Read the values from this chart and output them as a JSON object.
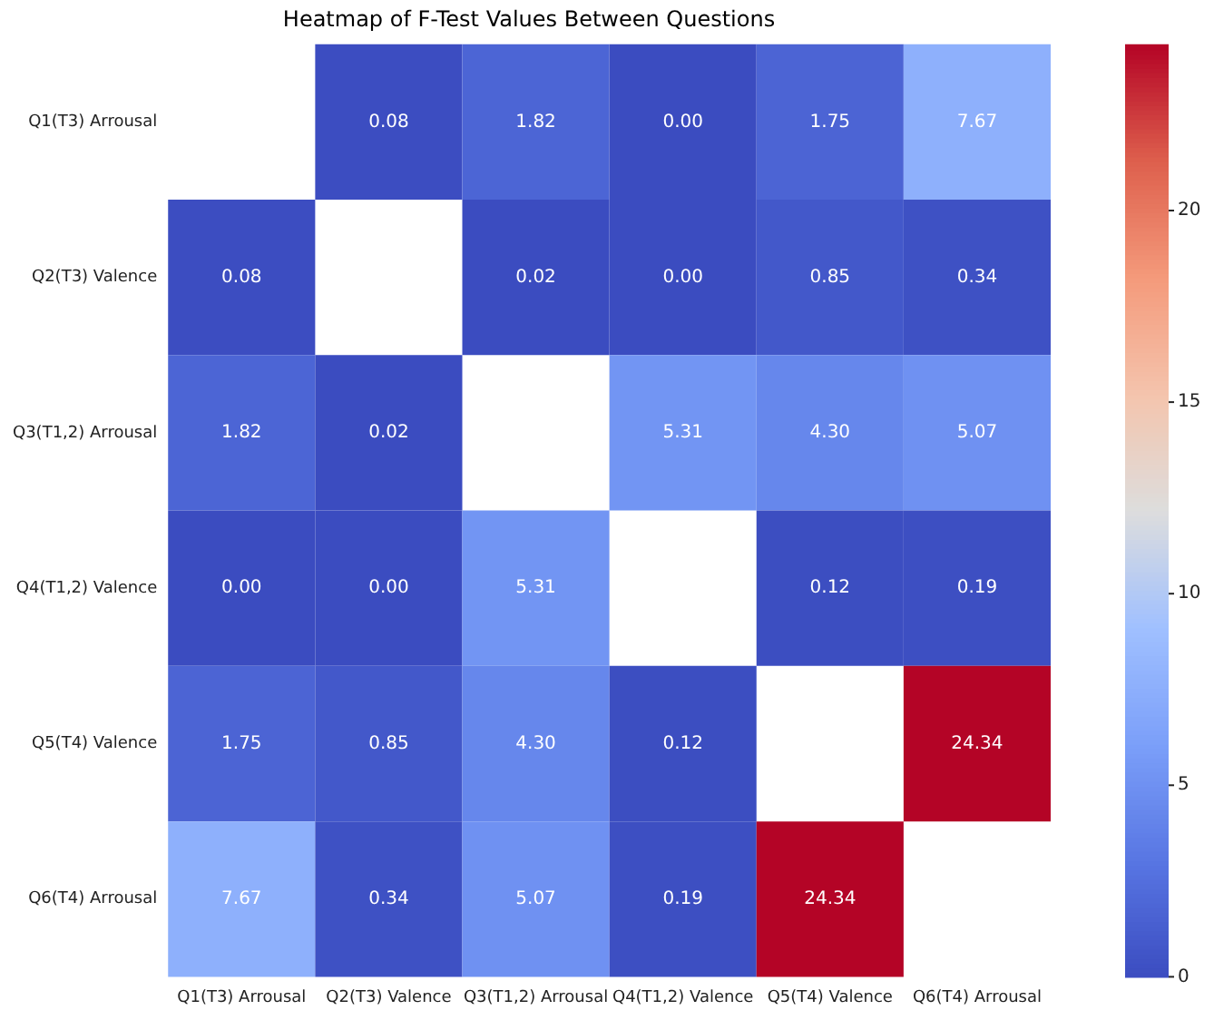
{
  "chart_data": {
    "type": "heatmap",
    "title": "Heatmap of F-Test Values Between Questions",
    "categories": [
      "Q1(T3) Arrousal",
      "Q2(T3) Valence",
      "Q3(T1,2) Arrousal",
      "Q4(T1,2) Valence",
      "Q5(T4) Valence",
      "Q6(T4) Arrousal"
    ],
    "y_categories": [
      "Q1(T3) Arrousal",
      "Q2(T3) Valence",
      "Q3(T1,2) Arrousal",
      "Q4(T1,2) Valence",
      "Q5(T4) Valence",
      "Q6(T4) Arrousal"
    ],
    "cells": [
      [
        null,
        0.08,
        1.82,
        0,
        1.75,
        7.67
      ],
      [
        0.08,
        null,
        0.02,
        0,
        0.85,
        0.34
      ],
      [
        1.82,
        0.02,
        null,
        5.31,
        4.3,
        5.07
      ],
      [
        0,
        0,
        5.31,
        null,
        0.12,
        0.19
      ],
      [
        1.75,
        0.85,
        4.3,
        0.12,
        null,
        24.34
      ],
      [
        7.67,
        0.34,
        5.07,
        0.19,
        24.34,
        null
      ]
    ],
    "cell_labels": [
      [
        null,
        "0.08",
        "1.82",
        "0.00",
        "1.75",
        "7.67"
      ],
      [
        "0.08",
        null,
        "0.02",
        "0.00",
        "0.85",
        "0.34"
      ],
      [
        "1.82",
        "0.02",
        null,
        "5.31",
        "4.30",
        "5.07"
      ],
      [
        "0.00",
        "0.00",
        "5.31",
        null,
        "0.12",
        "0.19"
      ],
      [
        "1.75",
        "0.85",
        "4.30",
        "0.12",
        null,
        "24.34"
      ],
      [
        "7.67",
        "0.34",
        "5.07",
        "0.19",
        "24.34",
        null
      ]
    ],
    "clim": [
      0,
      24.34
    ],
    "cticks": [
      0,
      5,
      10,
      15,
      20
    ]
  }
}
